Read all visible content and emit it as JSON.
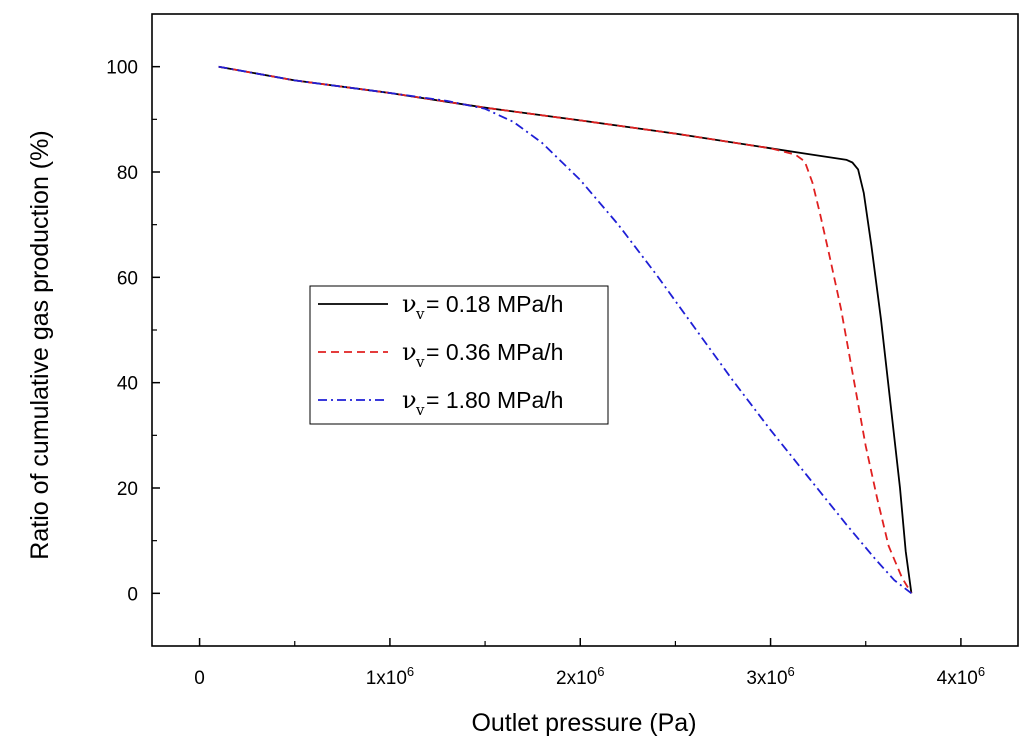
{
  "chart_data": {
    "type": "line",
    "title": "",
    "xlabel": "Outlet pressure (Pa)",
    "ylabel": "Ratio of cumulative gas production (%)",
    "xlim": [
      -250000,
      4300000
    ],
    "ylim": [
      -10,
      110
    ],
    "x_ticks": [
      {
        "value": 0,
        "base": "0",
        "exp": ""
      },
      {
        "value": 1000000,
        "base": "1x10",
        "exp": "6"
      },
      {
        "value": 2000000,
        "base": "2x10",
        "exp": "6"
      },
      {
        "value": 3000000,
        "base": "3x10",
        "exp": "6"
      },
      {
        "value": 4000000,
        "base": "4x10",
        "exp": "6"
      }
    ],
    "y_ticks": [
      0,
      20,
      40,
      60,
      80,
      100
    ],
    "legend_symbol": "ν",
    "legend_subscript": "v",
    "series": [
      {
        "name": "= 0.18 MPa/h",
        "color": "#000000",
        "dash": "",
        "points": [
          [
            100000,
            100
          ],
          [
            500000,
            97.4
          ],
          [
            1000000,
            95
          ],
          [
            1500000,
            92.2
          ],
          [
            2000000,
            89.8
          ],
          [
            2500000,
            87.3
          ],
          [
            3000000,
            84.5
          ],
          [
            3200000,
            83.4
          ],
          [
            3400000,
            82.3
          ],
          [
            3430000,
            81.8
          ],
          [
            3460000,
            80.5
          ],
          [
            3490000,
            76
          ],
          [
            3530000,
            66
          ],
          [
            3580000,
            52
          ],
          [
            3630000,
            36
          ],
          [
            3680000,
            20
          ],
          [
            3710000,
            8
          ],
          [
            3740000,
            0
          ]
        ]
      },
      {
        "name": "= 0.36 MPa/h",
        "color": "#e02020",
        "dash": "8,5",
        "points": [
          [
            100000,
            100
          ],
          [
            500000,
            97.4
          ],
          [
            1000000,
            95
          ],
          [
            1500000,
            92.2
          ],
          [
            2000000,
            89.8
          ],
          [
            2500000,
            87.3
          ],
          [
            3000000,
            84.5
          ],
          [
            3130000,
            83.3
          ],
          [
            3180000,
            82
          ],
          [
            3220000,
            78
          ],
          [
            3260000,
            72
          ],
          [
            3310000,
            64
          ],
          [
            3370000,
            54
          ],
          [
            3430000,
            42
          ],
          [
            3500000,
            28
          ],
          [
            3560000,
            18
          ],
          [
            3620000,
            9
          ],
          [
            3690000,
            3
          ],
          [
            3740000,
            0
          ]
        ]
      },
      {
        "name": "= 1.80 MPa/h",
        "color": "#1f1fd6",
        "dash": "9,4,2,4",
        "points": [
          [
            100000,
            100
          ],
          [
            500000,
            97.4
          ],
          [
            1000000,
            95
          ],
          [
            1300000,
            93.5
          ],
          [
            1500000,
            92
          ],
          [
            1650000,
            89.5
          ],
          [
            1800000,
            85.5
          ],
          [
            2000000,
            78.5
          ],
          [
            2200000,
            70
          ],
          [
            2400000,
            60.5
          ],
          [
            2600000,
            50.5
          ],
          [
            2800000,
            40.5
          ],
          [
            3000000,
            31
          ],
          [
            3200000,
            22
          ],
          [
            3400000,
            13
          ],
          [
            3550000,
            6.5
          ],
          [
            3650000,
            2.5
          ],
          [
            3740000,
            0
          ]
        ]
      }
    ]
  }
}
